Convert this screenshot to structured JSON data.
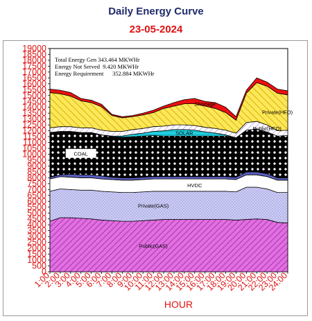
{
  "page": {
    "title": "Daily Energy Curve",
    "date": "23-05-2024"
  },
  "annotation": {
    "total_gen": "Total Energy Gen 343.464 MKWHr",
    "not_served": "Energy Not Served  9.420 MKWHr",
    "requirement": "Energy Requirement      352.884 MKWHr"
  },
  "chart_data": {
    "type": "area",
    "stacked": true,
    "xlabel": "HOUR",
    "ylabel": "",
    "ylim": [
      0,
      19000
    ],
    "ytick_step": 500,
    "x": [
      "1:00",
      "2:00",
      "3:00",
      "4:00",
      "5:00",
      "6:00",
      "7:00",
      "8:00",
      "9:00",
      "10:00",
      "11:00",
      "12:00",
      "13:00",
      "14:00",
      "15:00",
      "16:00",
      "17:00",
      "18:00",
      "19:00",
      "20:00",
      "21:00",
      "22:00",
      "23:00",
      "24:00"
    ],
    "series": [
      {
        "name": "Public(GAS)",
        "color": "#e070e0",
        "values": [
          4300,
          4600,
          4600,
          4550,
          4500,
          4400,
          4350,
          4300,
          4300,
          4350,
          4400,
          4450,
          4450,
          4450,
          4450,
          4450,
          4450,
          4450,
          4400,
          4450,
          4500,
          4450,
          4200,
          4150
        ]
      },
      {
        "name": "Private(GAS)",
        "color": "#c4c4f2",
        "values": [
          2550,
          2450,
          2400,
          2400,
          2450,
          2450,
          2450,
          2450,
          2450,
          2450,
          2450,
          2400,
          2400,
          2400,
          2400,
          2400,
          2400,
          2400,
          2400,
          2750,
          2700,
          2600,
          2550,
          2600
        ]
      },
      {
        "name": "HVDC",
        "color": "#ffffff",
        "values": [
          1050,
          1050,
          1050,
          1050,
          1050,
          1050,
          1050,
          1050,
          1050,
          1050,
          1050,
          1050,
          1050,
          1050,
          1050,
          1050,
          1050,
          1050,
          1050,
          1050,
          1050,
          1050,
          1050,
          1050
        ]
      },
      {
        "name": "",
        "color": "#5a5fc0",
        "values": [
          150,
          150,
          250,
          250,
          250,
          250,
          200,
          200,
          200,
          200,
          200,
          200,
          200,
          200,
          200,
          200,
          200,
          200,
          200,
          250,
          250,
          250,
          200,
          200
        ]
      },
      {
        "name": "COAL",
        "color": "#000000",
        "values": [
          3800,
          3700,
          3650,
          3600,
          3600,
          3500,
          3450,
          3450,
          3500,
          3500,
          3500,
          3450,
          3450,
          3450,
          3450,
          3450,
          3450,
          3450,
          3350,
          3550,
          3650,
          3550,
          3550,
          3600
        ]
      },
      {
        "name": "SOLAR",
        "color": "#20d0e0",
        "values": [
          0,
          0,
          0,
          0,
          0,
          0,
          50,
          100,
          200,
          250,
          350,
          450,
          550,
          550,
          500,
          350,
          250,
          100,
          0,
          0,
          0,
          0,
          0,
          0
        ]
      },
      {
        "name": "Public(HFO)",
        "color": "#ffffff",
        "values": [
          400,
          400,
          400,
          400,
          400,
          400,
          400,
          400,
          400,
          400,
          400,
          400,
          400,
          400,
          400,
          400,
          400,
          400,
          400,
          650,
          650,
          600,
          450,
          450
        ]
      },
      {
        "name": "Private(HFO)",
        "color": "#f7e24a",
        "values": [
          3000,
          2800,
          2600,
          2300,
          2150,
          2000,
          1350,
          1150,
          1100,
          1150,
          1200,
          1500,
          1600,
          1800,
          1850,
          1800,
          1700,
          1500,
          1100,
          2500,
          3300,
          3300,
          3200,
          3000
        ]
      },
      {
        "name": "Shortage",
        "color": "#ee1010",
        "values": [
          300,
          300,
          300,
          200,
          200,
          200,
          100,
          100,
          100,
          150,
          200,
          200,
          300,
          350,
          450,
          400,
          500,
          450,
          300,
          250,
          400,
          350,
          350,
          350
        ]
      }
    ]
  }
}
